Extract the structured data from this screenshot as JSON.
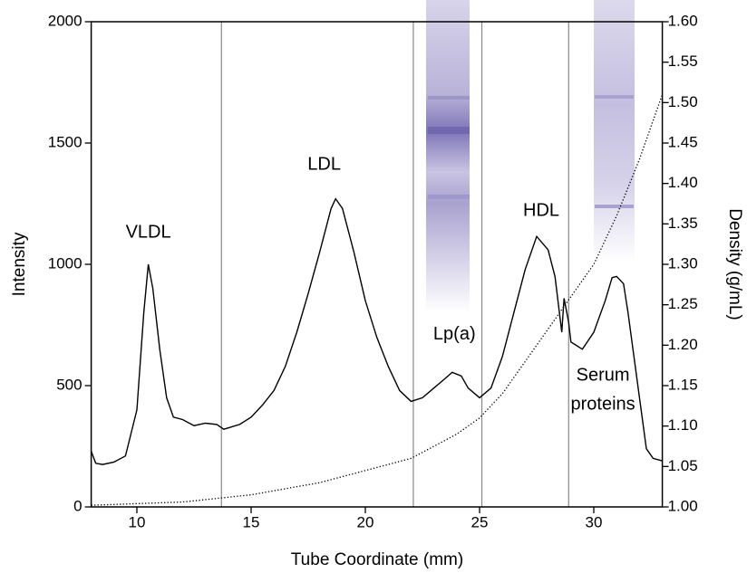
{
  "chart_data": {
    "type": "line",
    "xlabel": "Tube Coordinate (mm)",
    "ylabel": "Intensity",
    "y2label": "Density (g/mL)",
    "xlim": [
      8,
      33
    ],
    "xticks": [
      10,
      15,
      20,
      25,
      30
    ],
    "ylim": [
      0,
      2000
    ],
    "yticks": [
      0,
      500,
      1000,
      1500,
      2000
    ],
    "y2lim": [
      1,
      1.6
    ],
    "y2ticks": [
      {
        "value": 1,
        "label": "1.00"
      },
      1.05,
      {
        "value": 1.1,
        "label": "1.10"
      },
      1.15,
      {
        "value": 1.2,
        "label": "1.20"
      },
      1.25,
      {
        "value": 1.3,
        "label": "1.30"
      },
      1.35,
      {
        "value": 1.4,
        "label": "1.40"
      },
      1.45,
      {
        "value": 1.5,
        "label": "1.50"
      },
      1.55,
      {
        "value": 1.6,
        "label": "1.60"
      }
    ],
    "fraction_boundaries": [
      13.7,
      22.1,
      25.1,
      28.9
    ],
    "series": [
      {
        "color": "#000000",
        "style": "solid",
        "x": [
          8.0,
          8.2,
          8.5,
          9,
          9.5,
          10,
          10.3,
          10.5,
          10.7,
          11,
          11.3,
          11.6,
          12,
          12.5,
          13,
          13.5,
          13.8,
          14.5,
          15,
          15.5,
          16,
          16.5,
          17,
          17.5,
          18,
          18.5,
          18.7,
          19,
          19.5,
          20,
          20.5,
          21,
          21.5,
          22,
          22.5,
          23,
          23.5,
          23.8,
          24.2,
          24.5,
          25,
          25.5,
          26,
          26.5,
          27,
          27.5,
          28,
          28.3,
          28.6,
          28.7,
          28.9,
          29,
          29.5,
          30,
          30.5,
          30.8,
          31,
          31.3,
          31.5,
          32,
          32.3,
          32.6,
          33
        ],
        "values": [
          230,
          180,
          175,
          185,
          210,
          400,
          800,
          1000,
          900,
          650,
          450,
          370,
          360,
          335,
          345,
          340,
          320,
          340,
          370,
          420,
          480,
          580,
          720,
          880,
          1050,
          1230,
          1270,
          1230,
          1050,
          850,
          700,
          580,
          480,
          435,
          450,
          490,
          530,
          555,
          540,
          490,
          450,
          490,
          620,
          800,
          980,
          1115,
          1060,
          950,
          720,
          860,
          760,
          680,
          650,
          720,
          850,
          945,
          950,
          920,
          800,
          450,
          240,
          200,
          190
        ]
      },
      {
        "color": "#000000",
        "style": "dotted",
        "axis": "y2",
        "x": [
          8,
          12,
          15,
          18,
          20,
          22,
          24,
          25,
          26,
          27,
          28,
          29,
          30,
          31,
          32,
          33
        ],
        "values": [
          1.002,
          1.006,
          1.015,
          1.03,
          1.045,
          1.06,
          1.09,
          1.11,
          1.14,
          1.18,
          1.22,
          1.26,
          1.3,
          1.36,
          1.43,
          1.51
        ]
      }
    ],
    "annotations": [
      {
        "text": "VLDL",
        "x": 10.5,
        "y": 1130
      },
      {
        "text": "LDL",
        "x": 18.2,
        "y": 1410
      },
      {
        "text": "Lp(a)",
        "x": 23.9,
        "y": 710
      },
      {
        "text": "HDL",
        "x": 27.7,
        "y": 1220
      },
      {
        "text": "Serum",
        "x": 30.4,
        "y": 540
      },
      {
        "text": "proteins",
        "x": 30.4,
        "y": 420
      }
    ]
  }
}
